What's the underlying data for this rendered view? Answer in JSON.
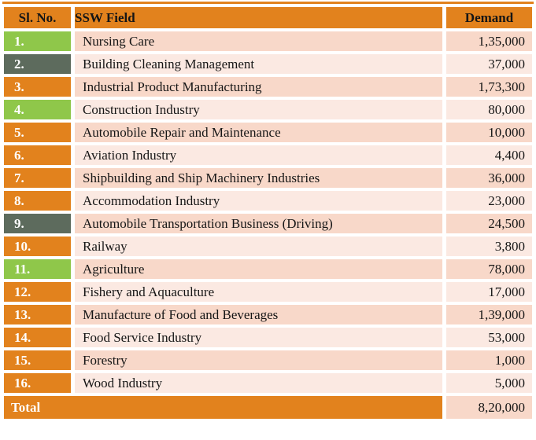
{
  "colors": {
    "header_orange": "#E2821D",
    "badge_green": "#8FC74A",
    "badge_slate": "#5D6B5D",
    "row_peach_dark": "#F8D8C9",
    "row_peach_light": "#FBE9E2",
    "text_black": "#161616",
    "text_white": "#FFFFFF"
  },
  "chart_data": {
    "type": "table",
    "title": "",
    "columns": [
      "Sl. No.",
      "SSW Field",
      "Demand"
    ],
    "rows": [
      {
        "sl_no": "1.",
        "ssw_field": "Nursing Care",
        "demand": "1,35,000",
        "demand_value": 135000,
        "sl_badge_color": "green"
      },
      {
        "sl_no": "2.",
        "ssw_field": "Building Cleaning Management",
        "demand": "37,000",
        "demand_value": 37000,
        "sl_badge_color": "slate"
      },
      {
        "sl_no": "3.",
        "ssw_field": "Industrial Product Manufacturing",
        "demand": "1,73,300",
        "demand_value": 173300,
        "sl_badge_color": "orange"
      },
      {
        "sl_no": "4.",
        "ssw_field": "Construction Industry",
        "demand": "80,000",
        "demand_value": 80000,
        "sl_badge_color": "green"
      },
      {
        "sl_no": "5.",
        "ssw_field": "Automobile Repair and Maintenance",
        "demand": "10,000",
        "demand_value": 10000,
        "sl_badge_color": "orange"
      },
      {
        "sl_no": "6.",
        "ssw_field": "Aviation Industry",
        "demand": "4,400",
        "demand_value": 4400,
        "sl_badge_color": "orange"
      },
      {
        "sl_no": "7.",
        "ssw_field": "Shipbuilding and Ship Machinery Industries",
        "demand": "36,000",
        "demand_value": 36000,
        "sl_badge_color": "orange"
      },
      {
        "sl_no": "8.",
        "ssw_field": "Accommodation Industry",
        "demand": "23,000",
        "demand_value": 23000,
        "sl_badge_color": "orange"
      },
      {
        "sl_no": "9.",
        "ssw_field": "Automobile Transportation Business (Driving)",
        "demand": "24,500",
        "demand_value": 24500,
        "sl_badge_color": "slate"
      },
      {
        "sl_no": "10.",
        "ssw_field": "Railway",
        "demand": "3,800",
        "demand_value": 3800,
        "sl_badge_color": "orange"
      },
      {
        "sl_no": "11.",
        "ssw_field": "Agriculture",
        "demand": "78,000",
        "demand_value": 78000,
        "sl_badge_color": "green"
      },
      {
        "sl_no": "12.",
        "ssw_field": "Fishery and Aquaculture",
        "demand": "17,000",
        "demand_value": 17000,
        "sl_badge_color": "orange"
      },
      {
        "sl_no": "13.",
        "ssw_field": "Manufacture of Food and Beverages",
        "demand": "1,39,000",
        "demand_value": 139000,
        "sl_badge_color": "orange"
      },
      {
        "sl_no": "14.",
        "ssw_field": "Food Service Industry",
        "demand": "53,000",
        "demand_value": 53000,
        "sl_badge_color": "orange"
      },
      {
        "sl_no": "15.",
        "ssw_field": "Forestry",
        "demand": "1,000",
        "demand_value": 1000,
        "sl_badge_color": "orange"
      },
      {
        "sl_no": "16.",
        "ssw_field": "Wood Industry",
        "demand": "5,000",
        "demand_value": 5000,
        "sl_badge_color": "orange"
      }
    ],
    "total": {
      "label": "Total",
      "demand": "8,20,000",
      "demand_value": 820000
    },
    "layout": {
      "header_background": "#E2821D",
      "banded_rows": true,
      "demand_alignment": "right"
    }
  }
}
